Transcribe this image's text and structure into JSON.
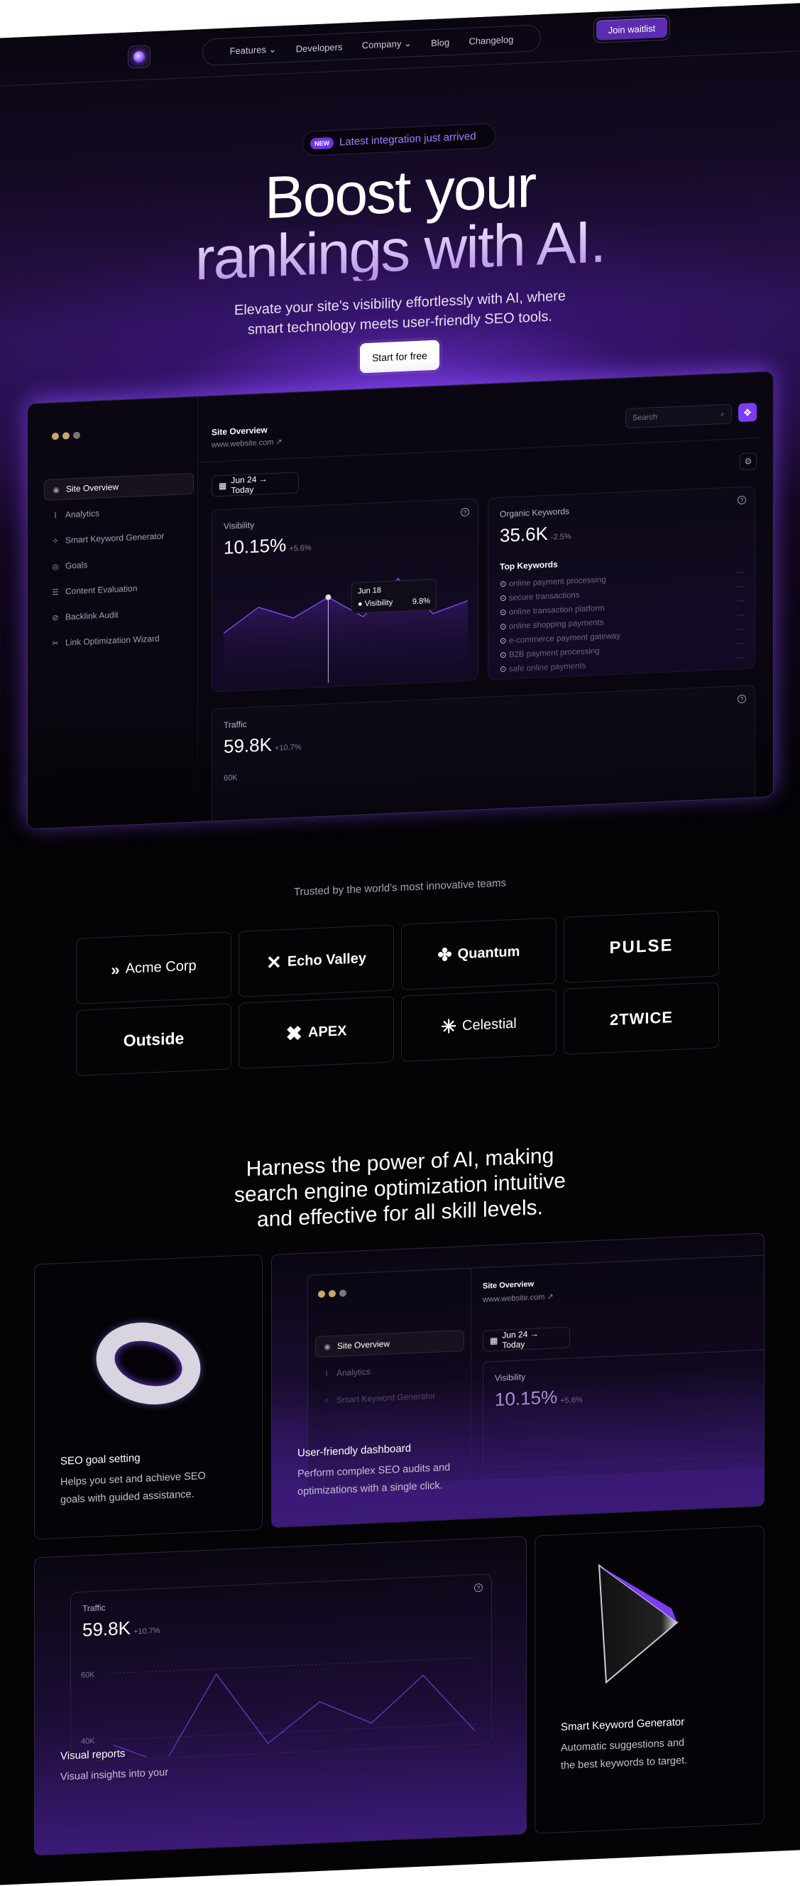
{
  "nav": {
    "items": [
      "Features",
      "Developers",
      "Company",
      "Blog",
      "Changelog"
    ],
    "join_label": "Join waitlist"
  },
  "hero": {
    "badge_tag": "NEW",
    "badge_text": "Latest integration just arrived",
    "title_line1": "Boost your",
    "title_line2": "rankings with AI.",
    "subtitle_line1": "Elevate your site's visibility effortlessly with AI, where",
    "subtitle_line2": "smart technology meets user-friendly SEO tools.",
    "cta": "Start for free"
  },
  "dashboard": {
    "sidebar": [
      "Site Overview",
      "Analytics",
      "Smart Keyword Generator",
      "Goals",
      "Content Evaluation",
      "Backlink Audit",
      "Link Optimization Wizard"
    ],
    "sidebar_icons": [
      "eye-icon",
      "chart-icon",
      "sparkle-icon",
      "target-icon",
      "list-icon",
      "link-icon",
      "wand-icon"
    ],
    "title": "Site Overview",
    "url": "www.website.com ↗",
    "search_placeholder": "Search",
    "date_range": "Jun 24 → Today",
    "visibility": {
      "label": "Visibility",
      "value": "10.15%",
      "change": "+5.6%",
      "series": [
        6.2,
        9.0,
        7.6,
        9.8,
        7.4,
        11.6,
        7.4,
        8.7
      ],
      "tooltip_date": "Jun 18",
      "tooltip_label": "Visibility",
      "tooltip_value": "9.8%"
    },
    "organic": {
      "label": "Organic Keywords",
      "value": "35.6K",
      "change": "-2.5%",
      "top_title": "Top Keywords",
      "keywords": [
        "online payment processing",
        "secure transactions",
        "online transaction platform",
        "online shopping payments",
        "e-commerce payment gateway",
        "B2B payment processing",
        "safe online payments"
      ]
    },
    "traffic": {
      "label": "Traffic",
      "value": "59.8K",
      "change": "+10.7%",
      "ticks": [
        "60K",
        "40K"
      ],
      "series": [
        38.4,
        32.1,
        58.4,
        36.8,
        48.7,
        41.6,
        55.3,
        37.9
      ]
    }
  },
  "trusted": {
    "text": "Trusted by the world's most innovative teams",
    "logos": [
      "Acme Corp",
      "Echo Valley",
      "Quantum",
      "PULSE",
      "Outside",
      "APEX",
      "Celestial",
      "2TWICE"
    ]
  },
  "features": {
    "heading_line1": "Harness the power of AI, making",
    "heading_line2": "search engine optimization intuitive",
    "heading_line3": "and effective for all skill levels.",
    "cards": [
      {
        "title": "SEO goal setting",
        "desc1": "Helps you set and achieve SEO",
        "desc2": "goals with guided assistance."
      },
      {
        "title": "User-friendly dashboard",
        "desc1": "Perform complex SEO audits and",
        "desc2": "optimizations with a single click."
      },
      {
        "title": "Visual reports",
        "desc1": "Visual insights into your"
      },
      {
        "title": "Smart Keyword Generator",
        "desc1": "Automatic suggestions and",
        "desc2": "the best keywords to target."
      }
    ]
  },
  "colors": {
    "accent": "#7a3df0",
    "background": "#040306"
  }
}
